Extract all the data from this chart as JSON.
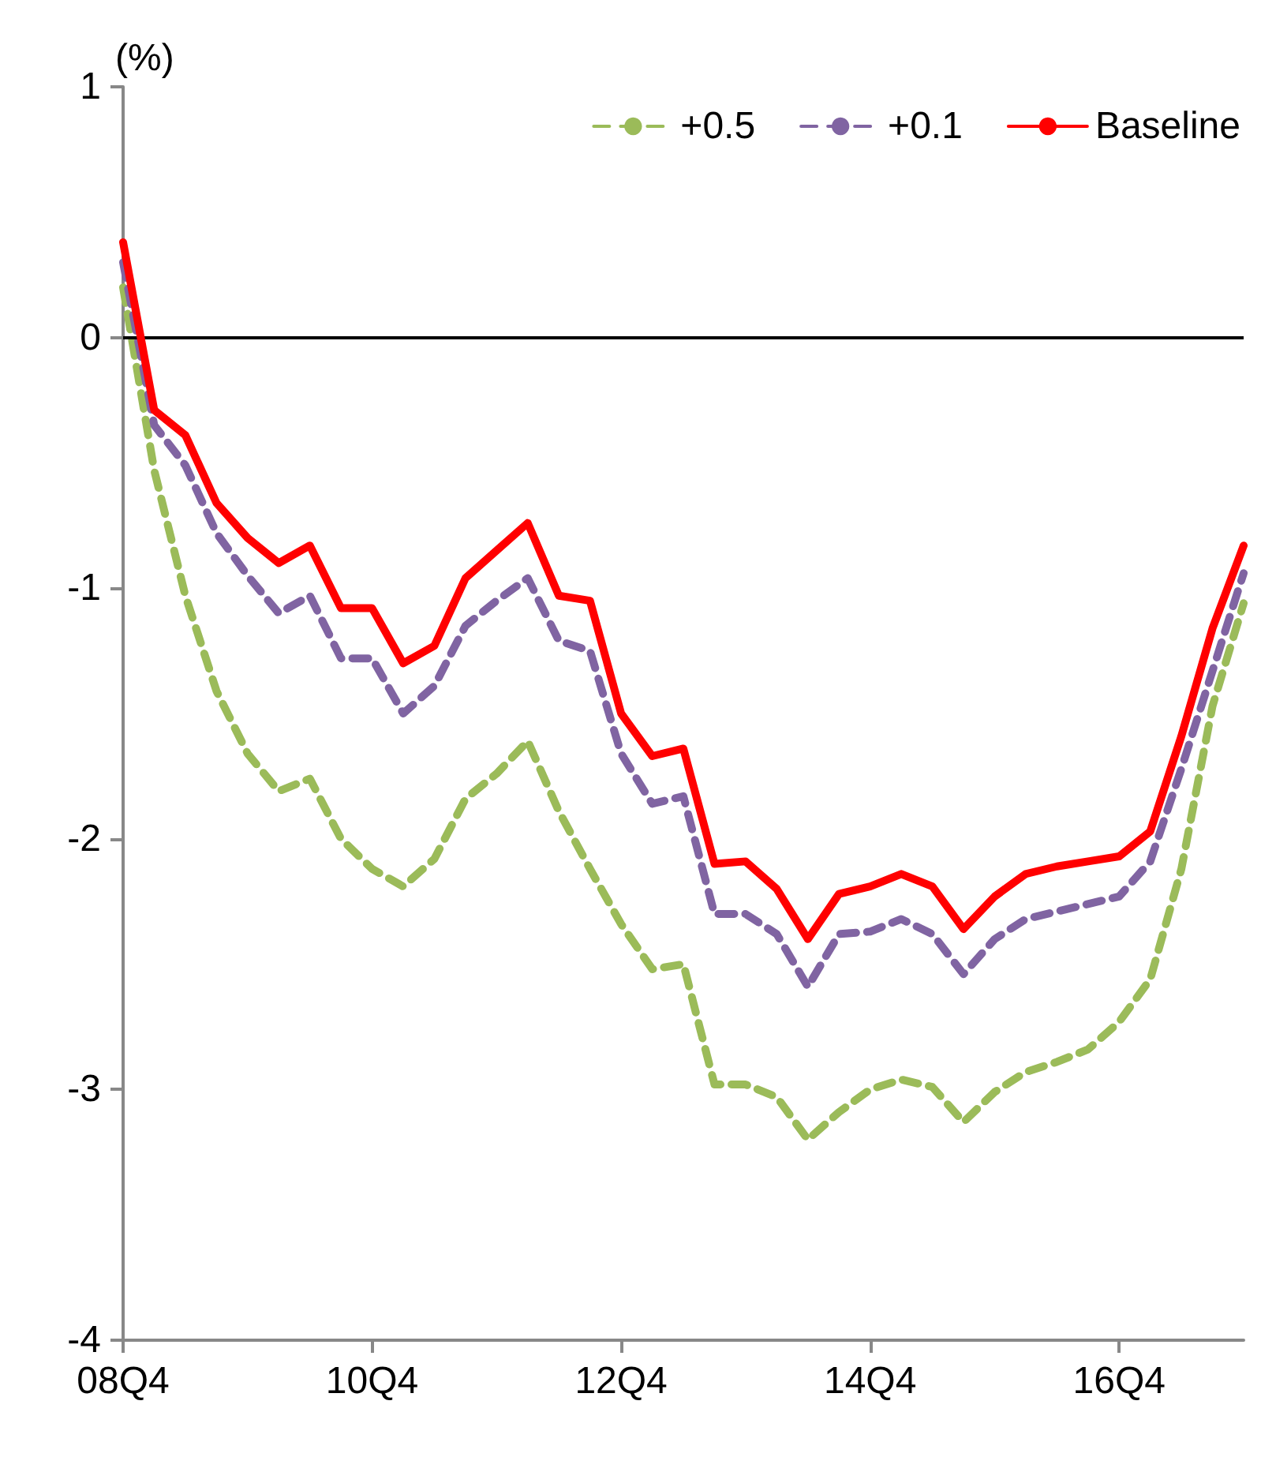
{
  "chart_data": {
    "type": "line",
    "ylabel": "(%)",
    "categories": [
      "08Q4",
      null,
      null,
      null,
      null,
      null,
      null,
      null,
      "10Q4",
      null,
      null,
      null,
      null,
      null,
      null,
      null,
      "12Q4",
      null,
      null,
      null,
      null,
      null,
      null,
      null,
      "14Q4",
      null,
      null,
      null,
      null,
      null,
      null,
      null,
      "16Q4",
      null,
      null,
      null,
      null
    ],
    "series": [
      {
        "name": "+0.5",
        "color": "#9bbb59",
        "line_style": "dashed",
        "values": [
          0.2,
          -0.53,
          -1.03,
          -1.41,
          -1.66,
          -1.81,
          -1.76,
          -2.0,
          -2.12,
          -2.19,
          -2.08,
          -1.84,
          -1.74,
          -1.61,
          -1.89,
          -2.12,
          -2.34,
          -2.52,
          -2.5,
          -2.98,
          -2.98,
          -3.03,
          -3.2,
          -3.09,
          -3.0,
          -2.96,
          -2.99,
          -3.13,
          -3.01,
          -2.93,
          -2.89,
          -2.84,
          -2.73,
          -2.56,
          -2.12,
          -1.47,
          -1.06
        ]
      },
      {
        "name": "+0.1",
        "color": "#8064a2",
        "line_style": "dashed",
        "values": [
          0.3,
          -0.35,
          -0.51,
          -0.78,
          -0.95,
          -1.1,
          -1.03,
          -1.28,
          -1.28,
          -1.5,
          -1.39,
          -1.15,
          -1.05,
          -0.96,
          -1.21,
          -1.25,
          -1.66,
          -1.86,
          -1.83,
          -2.3,
          -2.3,
          -2.38,
          -2.59,
          -2.38,
          -2.37,
          -2.32,
          -2.38,
          -2.54,
          -2.4,
          -2.32,
          -2.29,
          -2.26,
          -2.23,
          -2.09,
          -1.72,
          -1.33,
          -0.94
        ]
      },
      {
        "name": "Baseline",
        "color": "#ff0000",
        "line_style": "solid",
        "values": [
          0.38,
          -0.29,
          -0.39,
          -0.66,
          -0.8,
          -0.9,
          -0.83,
          -1.08,
          -1.08,
          -1.3,
          -1.23,
          -0.96,
          -0.85,
          -0.74,
          -1.03,
          -1.05,
          -1.5,
          -1.67,
          -1.64,
          -2.1,
          -2.09,
          -2.2,
          -2.4,
          -2.22,
          -2.19,
          -2.14,
          -2.19,
          -2.36,
          -2.23,
          -2.14,
          -2.11,
          -2.09,
          -2.07,
          -1.97,
          -1.59,
          -1.16,
          -0.83
        ]
      }
    ],
    "ylim": [
      -4,
      1
    ],
    "yticks": [
      -4,
      -3,
      -2,
      -1,
      0,
      1
    ],
    "grid": false,
    "legend": "top right",
    "marker": "none",
    "ref_lines": [
      {
        "axis": "y",
        "value": 0,
        "color": "#000000",
        "line_style": "solid"
      }
    ]
  }
}
